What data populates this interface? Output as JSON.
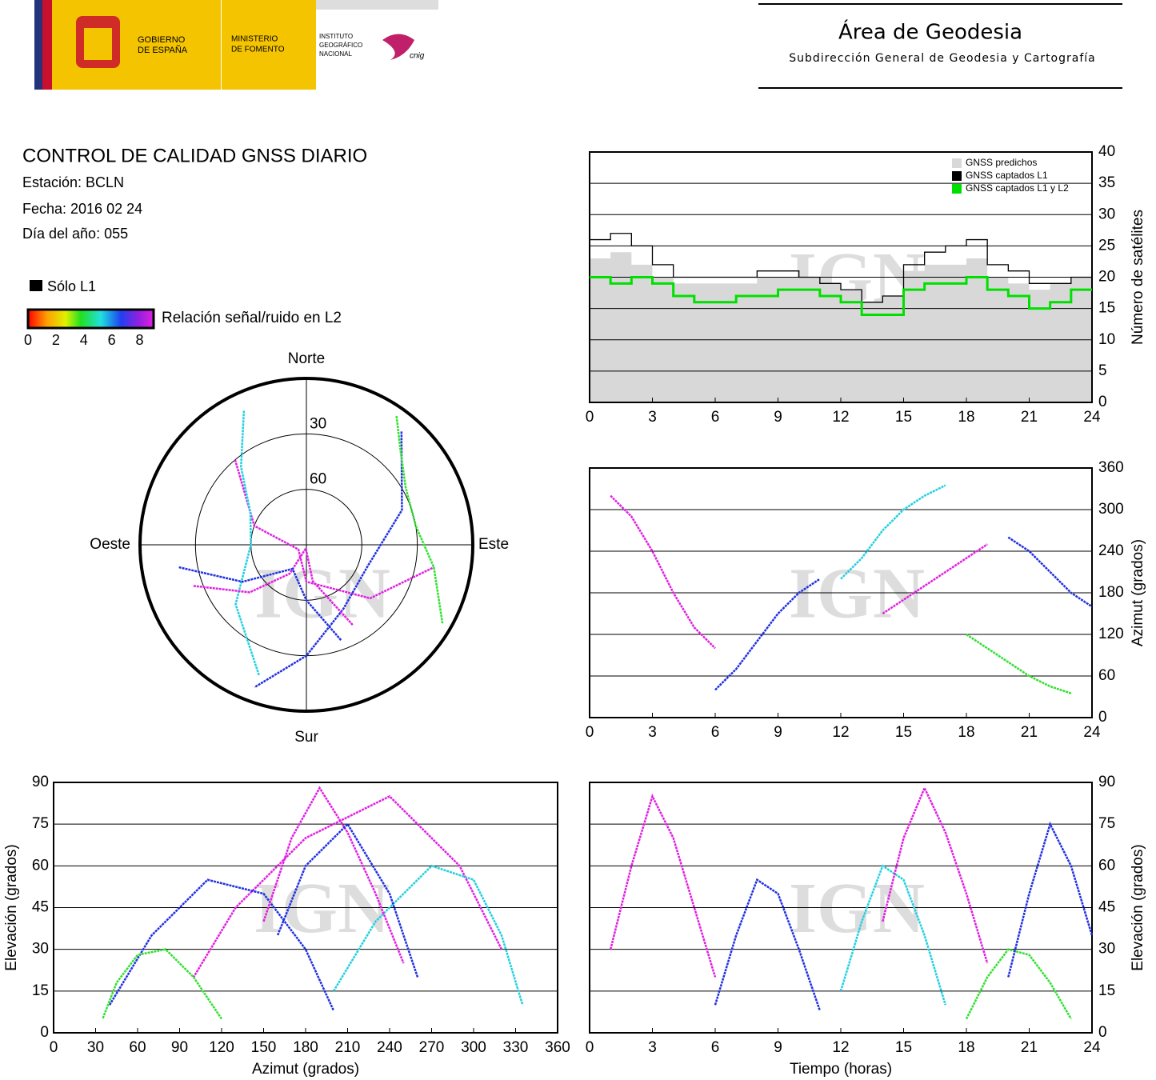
{
  "header": {
    "gobierno": [
      "GOBIERNO",
      "DE ESPAÑA"
    ],
    "ministerio": [
      "MINISTERIO",
      "DE FOMENTO"
    ],
    "instituto": [
      "INSTITUTO",
      "GEOGRÁFICO",
      "NACIONAL"
    ],
    "cnig": "cnig",
    "area": "Área de Geodesia",
    "subdireccion": "Subdirección General de Geodesia y Cartografía"
  },
  "report": {
    "title": "CONTROL DE CALIDAD GNSS DIARIO",
    "station": "Estación: BCLN",
    "date": "Fecha: 2016 02 24",
    "doy": "Día del año: 055",
    "solo_l1": "Sólo L1",
    "colorbar_label": "Relación señal/ruido en L2",
    "colorbar_lim": [
      0,
      9
    ],
    "colorbar_ticks": [
      0,
      2,
      4,
      6,
      8
    ]
  },
  "chart_data": [
    {
      "type": "step",
      "watermark": "IGN",
      "y_label": "Número de satélites",
      "xlim": [
        0,
        24
      ],
      "xticks": [
        0,
        3,
        6,
        9,
        12,
        15,
        18,
        21,
        24
      ],
      "ylim": [
        0,
        40
      ],
      "yticks": [
        0,
        5,
        10,
        15,
        20,
        25,
        30,
        35,
        40
      ],
      "grid": true,
      "legend": "upper right",
      "x": [
        0,
        1,
        2,
        3,
        4,
        5,
        6,
        7,
        8,
        9,
        10,
        11,
        12,
        13,
        14,
        15,
        16,
        17,
        18,
        19,
        20,
        21,
        22,
        23,
        24
      ],
      "series": [
        {
          "name": "GNSS predichos",
          "color": "#d8d8d8",
          "style": "area",
          "values": [
            23,
            24,
            22,
            20,
            19,
            19,
            19,
            19,
            20,
            20,
            20,
            19,
            18,
            16,
            17,
            21,
            22,
            22,
            23,
            20,
            19,
            18,
            19,
            20,
            20
          ]
        },
        {
          "name": "GNSS captados L1",
          "color": "#000000",
          "style": "line",
          "values": [
            26,
            27,
            25,
            22,
            20,
            20,
            20,
            20,
            21,
            21,
            20,
            19,
            18,
            16,
            17,
            22,
            24,
            25,
            26,
            22,
            21,
            19,
            19,
            20,
            20
          ]
        },
        {
          "name": "GNSS captados L1 y L2",
          "color": "#00e000",
          "style": "line",
          "values": [
            20,
            19,
            20,
            19,
            17,
            16,
            16,
            17,
            17,
            18,
            18,
            17,
            16,
            14,
            14,
            18,
            19,
            19,
            20,
            18,
            17,
            15,
            16,
            18,
            18
          ]
        }
      ]
    },
    {
      "type": "track",
      "watermark": "IGN",
      "y_label": "Azimut (grados)",
      "xlim": [
        0,
        24
      ],
      "xticks": [
        0,
        3,
        6,
        9,
        12,
        15,
        18,
        21,
        24
      ],
      "ylim": [
        0,
        360
      ],
      "yticks": [
        0,
        60,
        120,
        180,
        240,
        300,
        360
      ],
      "grid": true,
      "series": [
        {
          "color": "#e020e0",
          "x": [
            1,
            2,
            3,
            4,
            5,
            6
          ],
          "values": [
            320,
            290,
            240,
            180,
            130,
            100
          ]
        },
        {
          "color": "#2030e0",
          "x": [
            6,
            7,
            8,
            9,
            10,
            11
          ],
          "values": [
            40,
            70,
            110,
            150,
            180,
            200
          ]
        },
        {
          "color": "#20d0e0",
          "x": [
            12,
            13,
            14,
            15,
            16,
            17
          ],
          "values": [
            200,
            230,
            270,
            300,
            320,
            335
          ]
        },
        {
          "color": "#30e030",
          "x": [
            18,
            19,
            20,
            21,
            22,
            23
          ],
          "values": [
            120,
            100,
            80,
            60,
            45,
            35
          ]
        },
        {
          "color": "#e020e0",
          "x": [
            14,
            15,
            16,
            17,
            18,
            19
          ],
          "values": [
            150,
            170,
            190,
            210,
            230,
            250
          ]
        },
        {
          "color": "#2030e0",
          "x": [
            20,
            21,
            22,
            23,
            24
          ],
          "values": [
            260,
            240,
            210,
            180,
            160
          ]
        }
      ]
    },
    {
      "type": "polar",
      "watermark": "IGN",
      "directions": [
        "Norte",
        "Este",
        "Sur",
        "Oeste"
      ],
      "rlim": [
        90,
        0
      ],
      "rticks": [
        30,
        60
      ],
      "series": [
        {
          "color": "#e020e0",
          "x": [
            320,
            290,
            240,
            180,
            130,
            100
          ],
          "values": [
            30,
            60,
            85,
            70,
            45,
            20
          ]
        },
        {
          "color": "#2030e0",
          "x": [
            40,
            70,
            110,
            150,
            180,
            200
          ],
          "values": [
            10,
            35,
            55,
            50,
            30,
            8
          ]
        },
        {
          "color": "#20d0e0",
          "x": [
            200,
            230,
            270,
            300,
            320,
            335
          ],
          "values": [
            15,
            40,
            60,
            55,
            35,
            10
          ]
        },
        {
          "color": "#30e030",
          "x": [
            120,
            100,
            80,
            60,
            45,
            35
          ],
          "values": [
            5,
            20,
            30,
            28,
            18,
            5
          ]
        },
        {
          "color": "#e020e0",
          "x": [
            150,
            170,
            190,
            210,
            230,
            250
          ],
          "values": [
            40,
            70,
            88,
            72,
            50,
            25
          ]
        },
        {
          "color": "#2030e0",
          "x": [
            260,
            240,
            210,
            180,
            160
          ],
          "values": [
            20,
            50,
            75,
            60,
            35
          ]
        }
      ]
    },
    {
      "type": "track",
      "watermark": "IGN",
      "x_label": "Azimut (grados)",
      "y_label": "Elevación (grados)",
      "xlim": [
        0,
        360
      ],
      "xticks": [
        0,
        30,
        60,
        90,
        120,
        150,
        180,
        210,
        240,
        270,
        300,
        330,
        360
      ],
      "ylim": [
        0,
        90
      ],
      "yticks": [
        0,
        15,
        30,
        45,
        60,
        75,
        90
      ],
      "grid": true,
      "series": [
        {
          "color": "#e020e0",
          "x": [
            320,
            290,
            240,
            180,
            130,
            100
          ],
          "values": [
            30,
            60,
            85,
            70,
            45,
            20
          ]
        },
        {
          "color": "#2030e0",
          "x": [
            40,
            70,
            110,
            150,
            180,
            200
          ],
          "values": [
            10,
            35,
            55,
            50,
            30,
            8
          ]
        },
        {
          "color": "#20d0e0",
          "x": [
            200,
            230,
            270,
            300,
            320,
            335
          ],
          "values": [
            15,
            40,
            60,
            55,
            35,
            10
          ]
        },
        {
          "color": "#30e030",
          "x": [
            120,
            100,
            80,
            60,
            45,
            35
          ],
          "values": [
            5,
            20,
            30,
            28,
            18,
            5
          ]
        },
        {
          "color": "#e020e0",
          "x": [
            150,
            170,
            190,
            210,
            230,
            250
          ],
          "values": [
            40,
            70,
            88,
            72,
            50,
            25
          ]
        },
        {
          "color": "#2030e0",
          "x": [
            260,
            240,
            210,
            180,
            160
          ],
          "values": [
            20,
            50,
            75,
            60,
            35
          ]
        }
      ]
    },
    {
      "type": "track",
      "watermark": "IGN",
      "x_label": "Tiempo (horas)",
      "y_label": "Elevación (grados)",
      "xlim": [
        0,
        24
      ],
      "xticks": [
        0,
        3,
        6,
        9,
        12,
        15,
        18,
        21,
        24
      ],
      "ylim": [
        0,
        90
      ],
      "yticks": [
        0,
        15,
        30,
        45,
        60,
        75,
        90
      ],
      "grid": true,
      "series": [
        {
          "color": "#e020e0",
          "x": [
            1,
            2,
            3,
            4,
            5,
            6
          ],
          "values": [
            30,
            60,
            85,
            70,
            45,
            20
          ]
        },
        {
          "color": "#2030e0",
          "x": [
            6,
            7,
            8,
            9,
            10,
            11
          ],
          "values": [
            10,
            35,
            55,
            50,
            30,
            8
          ]
        },
        {
          "color": "#20d0e0",
          "x": [
            12,
            13,
            14,
            15,
            16,
            17
          ],
          "values": [
            15,
            40,
            60,
            55,
            35,
            10
          ]
        },
        {
          "color": "#30e030",
          "x": [
            18,
            19,
            20,
            21,
            22,
            23
          ],
          "values": [
            5,
            20,
            30,
            28,
            18,
            5
          ]
        },
        {
          "color": "#e020e0",
          "x": [
            14,
            15,
            16,
            17,
            18,
            19
          ],
          "values": [
            40,
            70,
            88,
            72,
            50,
            25
          ]
        },
        {
          "color": "#2030e0",
          "x": [
            20,
            21,
            22,
            23,
            24
          ],
          "values": [
            20,
            50,
            75,
            60,
            35
          ]
        }
      ]
    }
  ]
}
